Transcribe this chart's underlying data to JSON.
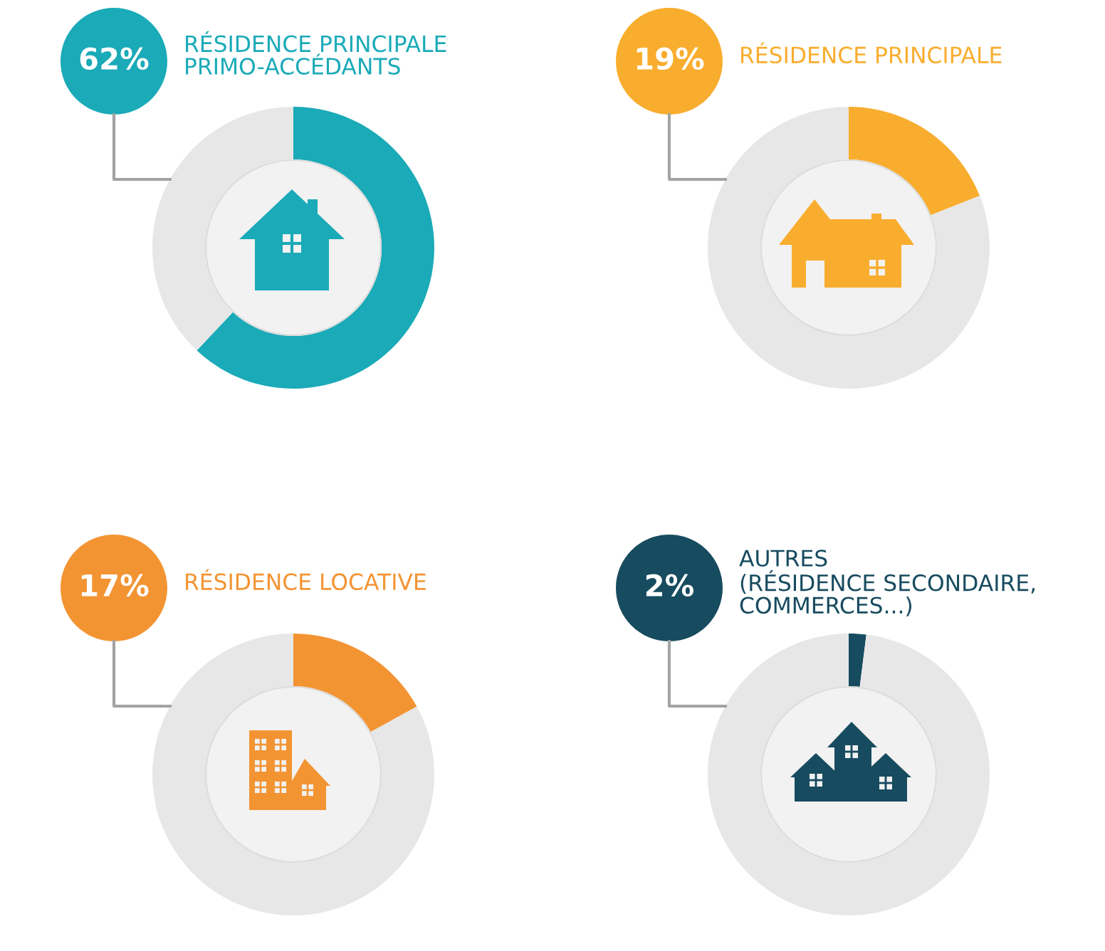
{
  "chart_data": [
    {
      "type": "donut",
      "categories": [
        "RÉSIDENCE PRINCIPALE\nPRIMO-ACCÉDANTS",
        null
      ],
      "values": [
        62,
        38
      ],
      "colors": [
        "#1aaab8",
        "#e7e7e7"
      ],
      "annotations": [
        "62%"
      ]
    },
    {
      "type": "donut",
      "categories": [
        "RÉSIDENCE PRINCIPALE",
        null
      ],
      "values": [
        19,
        81
      ],
      "colors": [
        "#f9ad2e",
        "#e7e7e7"
      ],
      "annotations": [
        "19%"
      ]
    },
    {
      "type": "donut",
      "categories": [
        "RÉSIDENCE LOCATIVE",
        null
      ],
      "values": [
        17,
        83
      ],
      "colors": [
        "#f39433",
        "#e7e7e7"
      ],
      "annotations": [
        "17%"
      ]
    },
    {
      "type": "donut",
      "categories": [
        "AUTRES\n(RÉSIDENCE SECONDAIRE,\nCOMMERCES...)",
        null
      ],
      "values": [
        2,
        98
      ],
      "colors": [
        "#174b5f",
        "#e7e7e7"
      ],
      "annotations": [
        "2%"
      ]
    }
  ]
}
